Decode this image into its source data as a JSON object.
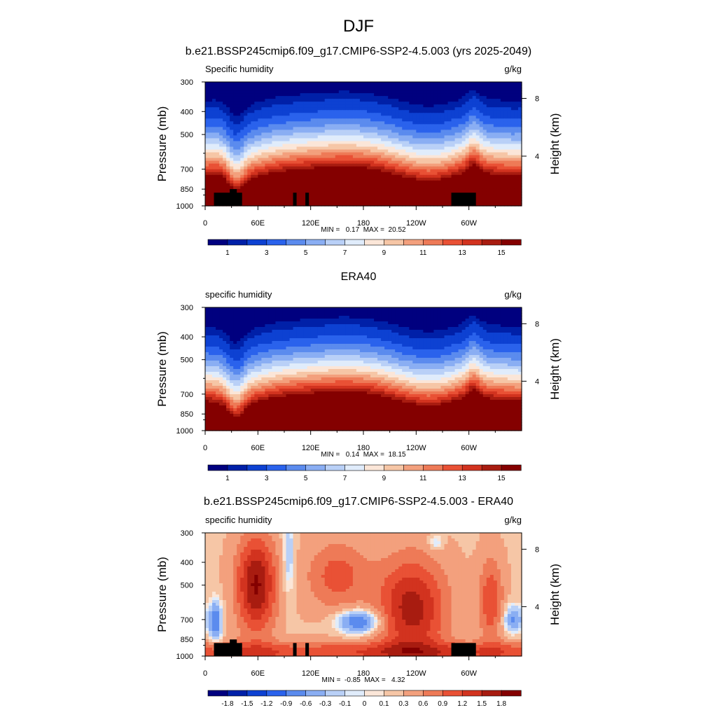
{
  "figure": {
    "title": "DJF"
  },
  "colors": {
    "abs_colorbar": [
      "#00007f",
      "#0020a8",
      "#0d41d2",
      "#2a62ec",
      "#5b8bee",
      "#8aaef3",
      "#b9d0f7",
      "#e0ecfb",
      "#fbe6d8",
      "#f6c6a6",
      "#f3a07d",
      "#ee7a57",
      "#e95135",
      "#d2331f",
      "#a81c10",
      "#840000"
    ],
    "diff_colorbar": [
      "#00007f",
      "#0020a8",
      "#0d41d2",
      "#2a62ec",
      "#5b8bee",
      "#8aaef3",
      "#b9d0f7",
      "#e0ecfb",
      "#fbe6d8",
      "#f6c6a6",
      "#f3a07d",
      "#ee7a57",
      "#e95135",
      "#d2331f",
      "#a81c10",
      "#840000"
    ],
    "topography": "#000000"
  },
  "chart_data": [
    {
      "type": "contour",
      "title": "b.e21.BSSP245cmip6.f09_g17.CMIP6-SSP2-4.5.003 (yrs 2025-2049)",
      "field_label": "Specific humidity",
      "units": "g/kg",
      "ylabel": "Pressure (mb)",
      "ylabel_right": "Height (km)",
      "x_ticks": [
        "0",
        "60E",
        "120E",
        "180",
        "120W",
        "60W"
      ],
      "x_tick_values": [
        0,
        60,
        120,
        180,
        240,
        300
      ],
      "xlim": [
        0,
        360
      ],
      "y_ticks": [
        "300",
        "400",
        "500",
        "700",
        "850",
        "1000"
      ],
      "y_tick_values": [
        300,
        400,
        500,
        700,
        850,
        1000
      ],
      "ylim": [
        1000,
        300
      ],
      "right_ticks": [
        "8",
        "4"
      ],
      "right_tick_values": [
        8,
        4
      ],
      "stats": "MIN =   0.17  MAX =  20.52",
      "min": 0.17,
      "max": 20.52,
      "colorbar_labels": [
        "1",
        "3",
        "5",
        "7",
        "9",
        "11",
        "13",
        "15"
      ],
      "colorbar_levels": [
        0.5,
        1,
        2,
        3,
        4,
        5,
        6,
        7,
        8,
        9,
        10,
        11,
        12,
        13,
        14,
        15
      ],
      "style": "model",
      "has_topography": true
    },
    {
      "type": "contour",
      "title": "ERA40",
      "field_label": "specific humidity",
      "units": "g/kg",
      "ylabel": "Pressure (mb)",
      "ylabel_right": "Height (km)",
      "x_ticks": [
        "0",
        "60E",
        "120E",
        "180",
        "120W",
        "60W"
      ],
      "x_tick_values": [
        0,
        60,
        120,
        180,
        240,
        300
      ],
      "xlim": [
        0,
        360
      ],
      "y_ticks": [
        "300",
        "400",
        "500",
        "700",
        "850",
        "1000"
      ],
      "y_tick_values": [
        300,
        400,
        500,
        700,
        850,
        1000
      ],
      "ylim": [
        1000,
        300
      ],
      "right_ticks": [
        "8",
        "4"
      ],
      "right_tick_values": [
        8,
        4
      ],
      "stats": "MIN =   0.14  MAX =  18.15",
      "min": 0.14,
      "max": 18.15,
      "colorbar_labels": [
        "1",
        "3",
        "5",
        "7",
        "9",
        "11",
        "13",
        "15"
      ],
      "colorbar_levels": [
        0.5,
        1,
        2,
        3,
        4,
        5,
        6,
        7,
        8,
        9,
        10,
        11,
        12,
        13,
        14,
        15
      ],
      "style": "obs",
      "has_topography": false
    },
    {
      "type": "contour",
      "title": "b.e21.BSSP245cmip6.f09_g17.CMIP6-SSP2-4.5.003 - ERA40",
      "field_label": "specific humidity",
      "units": "g/kg",
      "ylabel": "Pressure (mb)",
      "ylabel_right": "Height (km)",
      "x_ticks": [
        "0",
        "60E",
        "120E",
        "180",
        "120W",
        "60W"
      ],
      "x_tick_values": [
        0,
        60,
        120,
        180,
        240,
        300
      ],
      "xlim": [
        0,
        360
      ],
      "y_ticks": [
        "300",
        "400",
        "500",
        "700",
        "850",
        "1000"
      ],
      "y_tick_values": [
        300,
        400,
        500,
        700,
        850,
        1000
      ],
      "ylim": [
        1000,
        300
      ],
      "right_ticks": [
        "8",
        "4"
      ],
      "right_tick_values": [
        8,
        4
      ],
      "stats": "MIN =  -0.85  MAX =   4.32",
      "min": -0.85,
      "max": 4.32,
      "colorbar_labels": [
        "-1.8",
        "-1.5",
        "-1.2",
        "-0.9",
        "-0.6",
        "-0.3",
        "-0.1",
        "0",
        "0.1",
        "0.3",
        "0.6",
        "0.9",
        "1.2",
        "1.5",
        "1.8"
      ],
      "colorbar_levels": [
        -1.8,
        -1.5,
        -1.2,
        -0.9,
        -0.6,
        -0.3,
        -0.1,
        0,
        0.1,
        0.3,
        0.6,
        0.9,
        1.2,
        1.5,
        1.8
      ],
      "style": "diff",
      "has_topography": true
    }
  ]
}
